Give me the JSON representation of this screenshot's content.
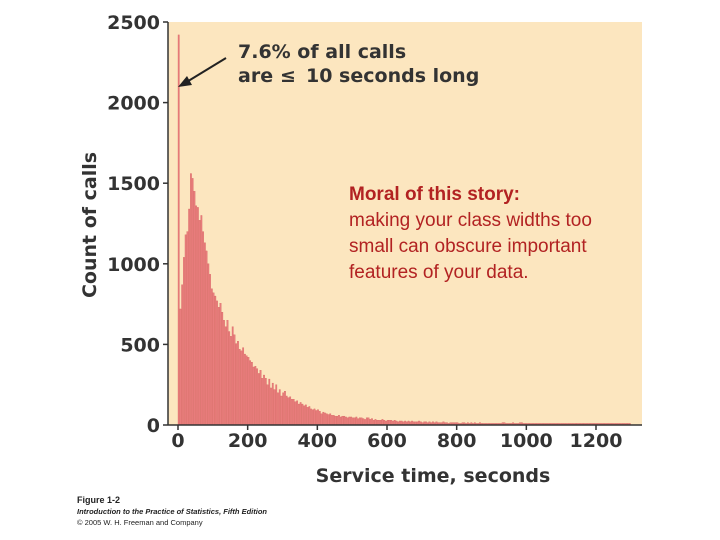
{
  "chart_data": {
    "type": "bar",
    "title": "",
    "xlabel": "Service time, seconds",
    "ylabel": "Count of calls",
    "xlim": [
      0,
      1200
    ],
    "ylim": [
      0,
      2500
    ],
    "x_ticks": [
      "0",
      "200",
      "400",
      "600",
      "800",
      "1000",
      "1200"
    ],
    "y_ticks": [
      "0",
      "500",
      "1000",
      "1500",
      "2000",
      "2500"
    ],
    "bin_width_seconds": 5,
    "bin_start": [
      0,
      5,
      10,
      15,
      20,
      25,
      30,
      35,
      40,
      45,
      50,
      55,
      60,
      65,
      70,
      75,
      80,
      85,
      90,
      95,
      100,
      105,
      110,
      115,
      120,
      125,
      130,
      135,
      140,
      145,
      150,
      155,
      160,
      165,
      170,
      175,
      180,
      185,
      190,
      195,
      200,
      205,
      210,
      215,
      220,
      225,
      230,
      235,
      240,
      245,
      250,
      255,
      260,
      265,
      270,
      275,
      280,
      285,
      290,
      295,
      300,
      305,
      310,
      315,
      320,
      325,
      330,
      335,
      340,
      345,
      350,
      355,
      360,
      365,
      370,
      375,
      380,
      385,
      390,
      395,
      400,
      405,
      410,
      415,
      420,
      425,
      430,
      435,
      440,
      445,
      450,
      455,
      460,
      465,
      470,
      475,
      480,
      485,
      490,
      495,
      500,
      505,
      510,
      515,
      520,
      525,
      530,
      535,
      540,
      545,
      550,
      555,
      560,
      565,
      570,
      575,
      580,
      585,
      590,
      595,
      600,
      605,
      610,
      615,
      620,
      625,
      630,
      635,
      640,
      645,
      650,
      655,
      660,
      665,
      670,
      675,
      680,
      685,
      690,
      695,
      700,
      705,
      710,
      715,
      720,
      725,
      730,
      735,
      740,
      745,
      750,
      755,
      760,
      765,
      770,
      775,
      780,
      785,
      790,
      795,
      800,
      805,
      810,
      815,
      820,
      825,
      830,
      835,
      840,
      845,
      850,
      855,
      860,
      865,
      870,
      875,
      880,
      885,
      890,
      895,
      900,
      905,
      910,
      915,
      920,
      925,
      930,
      935,
      940,
      945,
      950,
      955,
      960,
      965,
      970,
      975,
      980,
      985,
      990,
      995,
      1000,
      1005,
      1010,
      1015,
      1020,
      1025,
      1030,
      1035,
      1040,
      1045,
      1050,
      1055,
      1060,
      1065,
      1070,
      1075,
      1080,
      1085,
      1090,
      1095,
      1100,
      1105,
      1110,
      1115,
      1120,
      1125,
      1130,
      1135,
      1140,
      1145,
      1150,
      1155,
      1160,
      1165,
      1170,
      1175,
      1180,
      1185,
      1190,
      1195,
      1200,
      1205,
      1210,
      1215,
      1220,
      1225,
      1230,
      1235,
      1240,
      1245,
      1250,
      1255,
      1260,
      1265,
      1270,
      1275,
      1280,
      1285,
      1290,
      1295
    ],
    "values": [
      2420,
      720,
      870,
      1040,
      1180,
      1200,
      1340,
      1560,
      1530,
      1450,
      1360,
      1350,
      1270,
      1300,
      1200,
      1130,
      1080,
      1000,
      935,
      845,
      820,
      800,
      770,
      730,
      755,
      700,
      650,
      610,
      650,
      580,
      550,
      610,
      560,
      505,
      520,
      470,
      460,
      480,
      440,
      430,
      420,
      400,
      390,
      360,
      365,
      350,
      320,
      340,
      290,
      310,
      290,
      250,
      285,
      230,
      260,
      220,
      250,
      200,
      220,
      180,
      200,
      210,
      180,
      170,
      175,
      160,
      160,
      145,
      150,
      130,
      140,
      130,
      120,
      125,
      110,
      115,
      100,
      95,
      100,
      90,
      95,
      85,
      70,
      80,
      75,
      70,
      65,
      70,
      60,
      60,
      55,
      55,
      60,
      50,
      55,
      55,
      50,
      45,
      50,
      50,
      45,
      45,
      50,
      40,
      45,
      45,
      40,
      35,
      45,
      45,
      35,
      40,
      30,
      35,
      30,
      30,
      30,
      35,
      30,
      25,
      30,
      30,
      30,
      25,
      30,
      25,
      20,
      25,
      25,
      20,
      25,
      20,
      25,
      20,
      25,
      20,
      20,
      20,
      25,
      20,
      15,
      20,
      20,
      15,
      20,
      15,
      20,
      15,
      20,
      15,
      15,
      15,
      20,
      15,
      15,
      10,
      15,
      15,
      15,
      15,
      15,
      10,
      10,
      15,
      15,
      10,
      15,
      10,
      15,
      10,
      15,
      10,
      10,
      15,
      10,
      10,
      10,
      10,
      10,
      10,
      10,
      10,
      10,
      10,
      10,
      10,
      15,
      15,
      10,
      10,
      10,
      10,
      15,
      10,
      10,
      10,
      15,
      15,
      10,
      10,
      10,
      10,
      10,
      10,
      10,
      10,
      10,
      10,
      10,
      10,
      10,
      10,
      10,
      10,
      10,
      10,
      10,
      10,
      10,
      10,
      10,
      10,
      10,
      10,
      10,
      10,
      10,
      10,
      10,
      10,
      10,
      10,
      10,
      10,
      10,
      10,
      10,
      10,
      10,
      10,
      10,
      10,
      10,
      10,
      10,
      10,
      10,
      10,
      10,
      10,
      10,
      10,
      10,
      10,
      10,
      10,
      10,
      10,
      10,
      10,
      10,
      10,
      10,
      10,
      10,
      10,
      10
    ],
    "annotation": {
      "line1": "7.6% of all calls",
      "line2_prefix": "are",
      "line2_symbol": "≤",
      "line2_suffix": "10 seconds long",
      "arrow_points_to_x": 0,
      "arrow_points_to_y": 2050
    },
    "grid": false,
    "legend": "none"
  },
  "colors": {
    "plot_background": "#fce6bf",
    "bar_fill": "#e97d7d",
    "bar_stroke": "#d45f5f",
    "axis_text": "#333333",
    "moral_text": "#b22222"
  },
  "moral": {
    "heading": "Moral of this story:",
    "body": "making your class widths too small can obscure important features of your data."
  },
  "caption": {
    "figure": "Figure 1-2",
    "book": "Introduction to the Practice of Statistics, Fifth Edition",
    "copyright": "© 2005 W. H. Freeman and Company"
  }
}
